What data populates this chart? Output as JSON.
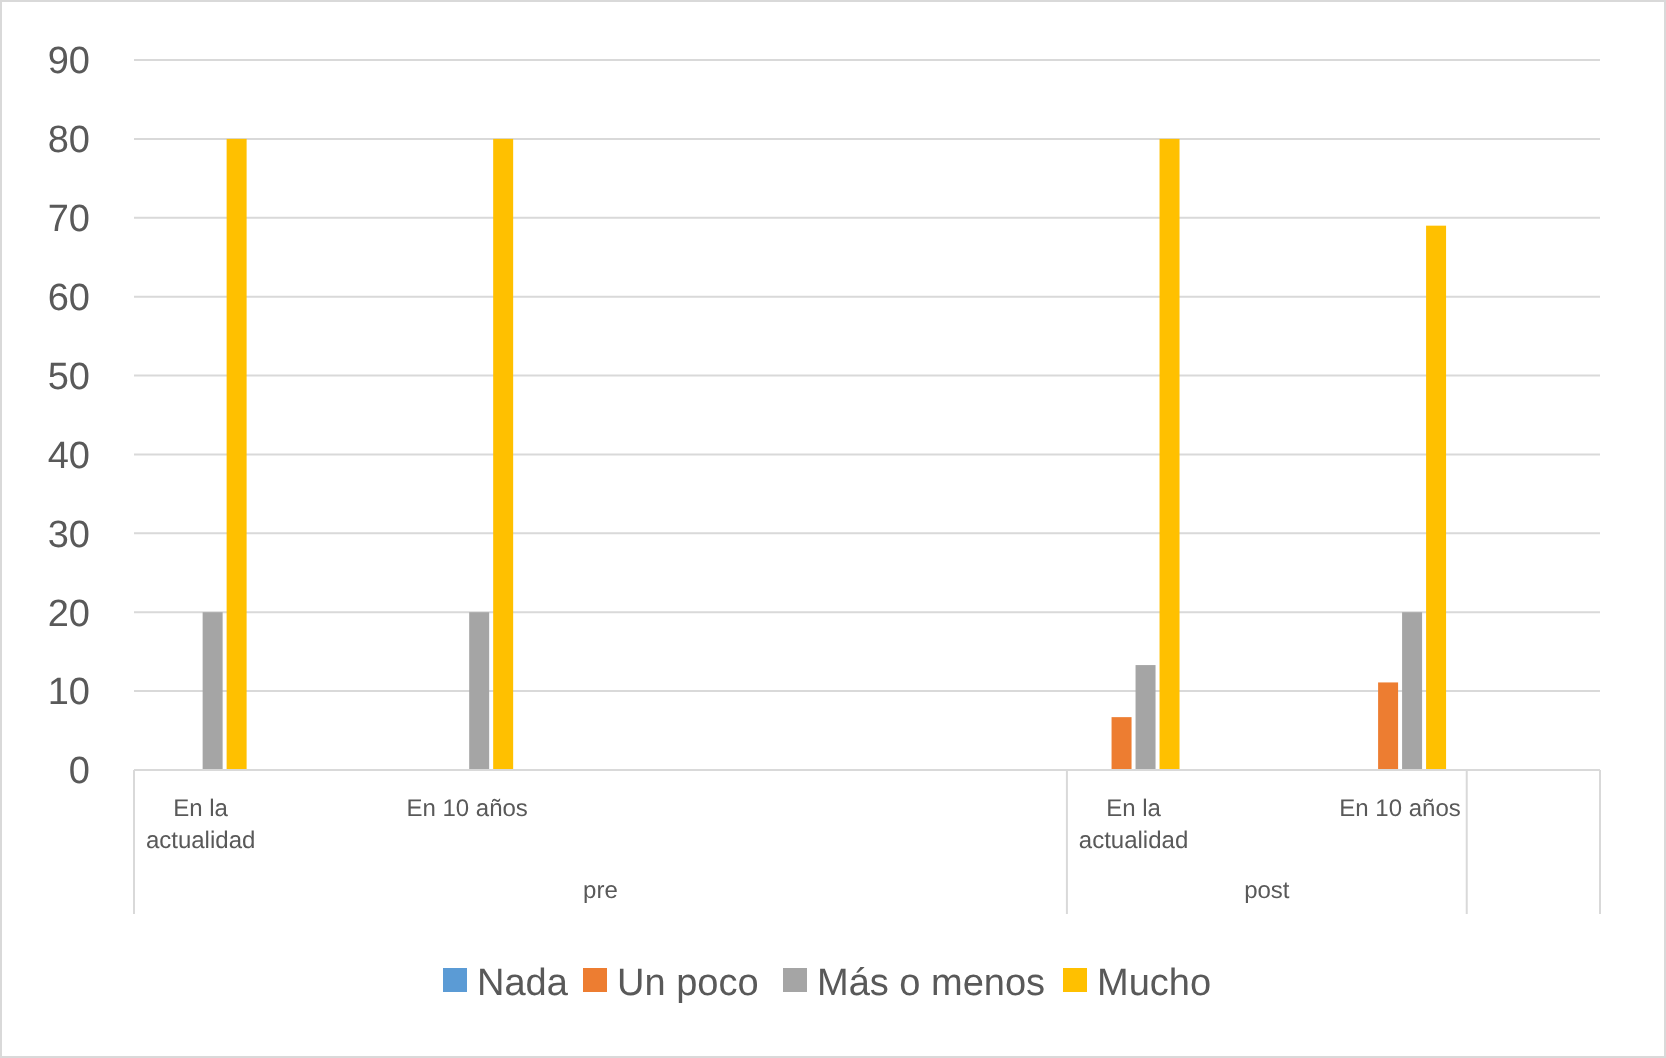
{
  "chart_data": {
    "type": "bar",
    "categories": [
      "En la actualidad",
      null,
      "En 10 años",
      null,
      null,
      null,
      null,
      "En la actualidad",
      null,
      "En 10 años",
      null
    ],
    "series": [
      {
        "name": "Nada",
        "color": "#5b9bd5",
        "values": [
          0,
          null,
          0,
          null,
          null,
          null,
          null,
          0,
          null,
          0,
          null
        ]
      },
      {
        "name": "Un poco",
        "color": "#ed7d31",
        "values": [
          0,
          null,
          0,
          null,
          null,
          null,
          null,
          6.7,
          null,
          11.1,
          null
        ]
      },
      {
        "name": "Más o menos",
        "color": "#a5a5a5",
        "values": [
          20,
          null,
          20,
          null,
          null,
          null,
          null,
          13.3,
          null,
          20,
          null
        ]
      },
      {
        "name": "Mucho",
        "color": "#ffc000",
        "values": [
          80,
          null,
          80,
          null,
          null,
          null,
          null,
          80,
          null,
          69,
          null
        ]
      }
    ],
    "annotations": [
      "pre",
      "post"
    ],
    "ylim": [
      0,
      90
    ],
    "yticks": [
      0,
      10,
      20,
      30,
      40,
      50,
      60,
      70,
      80,
      90
    ],
    "grid": "y",
    "legend": "bottom"
  }
}
